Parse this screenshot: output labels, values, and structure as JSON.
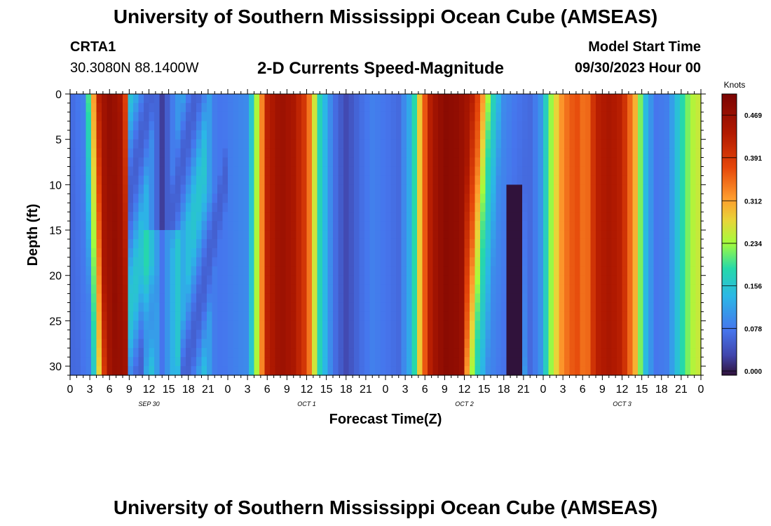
{
  "header": {
    "title": "University of Southern Mississippi Ocean Cube (AMSEAS)",
    "station": "CRTA1",
    "coordinates": "30.3080N  88.1400W",
    "subtitle": "2-D Currents Speed-Magnitude",
    "start_label": "Model Start Time",
    "start_value": "09/30/2023 Hour 00"
  },
  "footer": {
    "title": "University of Southern Mississippi Ocean Cube (AMSEAS)"
  },
  "chart_data": {
    "type": "heatmap",
    "title": "2-D Currents Speed-Magnitude",
    "xlabel": "Forecast Time(Z)",
    "ylabel": "Depth (ft)",
    "x_range_hours": [
      0,
      96
    ],
    "y_range_ft": [
      0,
      31
    ],
    "x_tick_labels": [
      "0",
      "3",
      "6",
      "9",
      "12",
      "15",
      "18",
      "21",
      "0",
      "3",
      "6",
      "9",
      "12",
      "15",
      "18",
      "21",
      "0",
      "3",
      "6",
      "9",
      "12",
      "15",
      "18",
      "21",
      "0",
      "3",
      "6",
      "9",
      "12",
      "15",
      "18",
      "21",
      "0"
    ],
    "x_date_labels": [
      {
        "label": "SEP 30",
        "hour": 12
      },
      {
        "label": "OCT 1",
        "hour": 36
      },
      {
        "label": "OCT 2",
        "hour": 60
      },
      {
        "label": "OCT 3",
        "hour": 84
      }
    ],
    "y_ticks": [
      0,
      5,
      10,
      15,
      20,
      25,
      30
    ],
    "colorbar": {
      "unit": "Knots",
      "ticks": [
        "0.000",
        "0.078",
        "0.156",
        "0.234",
        "0.312",
        "0.391",
        "0.469"
      ],
      "range": [
        0,
        0.5
      ]
    },
    "surface_speed_profile": {
      "hours": [
        0,
        2,
        3.5,
        4.5,
        6,
        7.5,
        9,
        10.5,
        12,
        14,
        16,
        18,
        20,
        21.5,
        23,
        25,
        27,
        28.5,
        30,
        32,
        34,
        36,
        38,
        40,
        42,
        44,
        46,
        48,
        50,
        52,
        53.5,
        55,
        57,
        59,
        61,
        62.5,
        64,
        66,
        68,
        70,
        71.5,
        73,
        75,
        77,
        78.5,
        80,
        82,
        84,
        86,
        87.5,
        89,
        91,
        93,
        94.5,
        96
      ],
      "knots": [
        0.07,
        0.09,
        0.3,
        0.44,
        0.47,
        0.45,
        0.33,
        0.18,
        0.12,
        0.03,
        0.1,
        0.15,
        0.22,
        0.09,
        0.08,
        0.09,
        0.1,
        0.25,
        0.42,
        0.46,
        0.44,
        0.38,
        0.18,
        0.08,
        0.04,
        0.07,
        0.09,
        0.08,
        0.07,
        0.14,
        0.32,
        0.44,
        0.48,
        0.47,
        0.44,
        0.35,
        0.2,
        0.1,
        0.08,
        0.07,
        0.1,
        0.22,
        0.33,
        0.37,
        0.33,
        0.42,
        0.44,
        0.42,
        0.3,
        0.15,
        0.08,
        0.09,
        0.18,
        0.24,
        0.26
      ]
    }
  }
}
